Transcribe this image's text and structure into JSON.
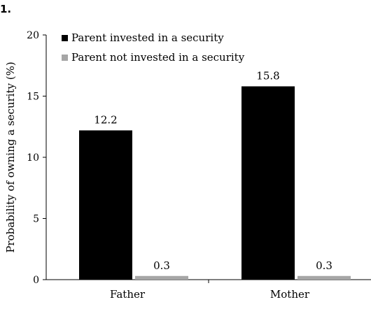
{
  "figure_label": "1.",
  "chart_data": {
    "type": "bar",
    "categories": [
      "Father",
      "Mother"
    ],
    "series": [
      {
        "name": "Parent invested in a security",
        "values": [
          12.2,
          15.8
        ],
        "color": "#000000"
      },
      {
        "name": "Parent not invested in a security",
        "values": [
          0.3,
          0.3
        ],
        "color": "#a6a6a6"
      }
    ],
    "data_labels": [
      [
        "12.2",
        "15.8"
      ],
      [
        "0.3",
        "0.3"
      ]
    ],
    "title": "",
    "xlabel": "",
    "ylabel": "Probability of owning a security (%)",
    "ylim": [
      0,
      20
    ],
    "yticks": [
      0,
      5,
      10,
      15,
      20
    ],
    "grid": false,
    "legend_position": "top-left"
  }
}
